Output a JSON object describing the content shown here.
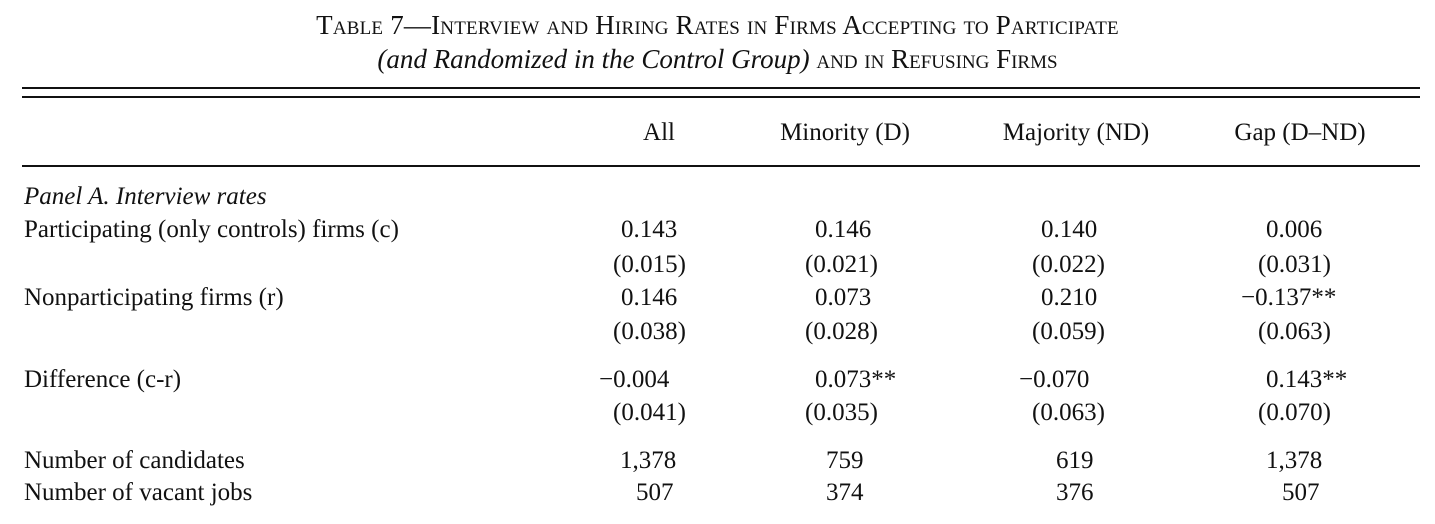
{
  "table": {
    "title_line1": "Table 7—Interview and Hiring Rates in Firms Accepting to Participate",
    "title_line2_italic": "(and Randomized in the Control Group)",
    "title_line2_rest": " and in Refusing Firms",
    "columns": [
      "All",
      "Minority (D)",
      "Majority (ND)",
      "Gap (D–ND)"
    ],
    "panel_a_title": "Panel A. Interview rates",
    "rows": [
      {
        "label": "Participating (only controls) firms (c)",
        "values": [
          "0.143",
          "0.146",
          "0.140",
          "0.006"
        ],
        "se": [
          "(0.015)",
          "(0.021)",
          "(0.022)",
          "(0.031)"
        ]
      },
      {
        "label": "Nonparticipating firms (r)",
        "values": [
          "0.146",
          "0.073",
          "0.210",
          "−0.137**"
        ],
        "se": [
          "(0.038)",
          "(0.028)",
          "(0.059)",
          "(0.063)"
        ]
      },
      {
        "label": "Difference (c-r)",
        "values": [
          "−0.004",
          "0.073**",
          "−0.070",
          "0.143**"
        ],
        "se": [
          "(0.041)",
          "(0.035)",
          "(0.063)",
          "(0.070)"
        ]
      },
      {
        "label": "Number of candidates",
        "values": [
          "1,378",
          "759",
          "619",
          "1,378"
        ]
      },
      {
        "label": "Number of vacant jobs",
        "values": [
          "507",
          "374",
          "376",
          "507"
        ]
      }
    ]
  }
}
